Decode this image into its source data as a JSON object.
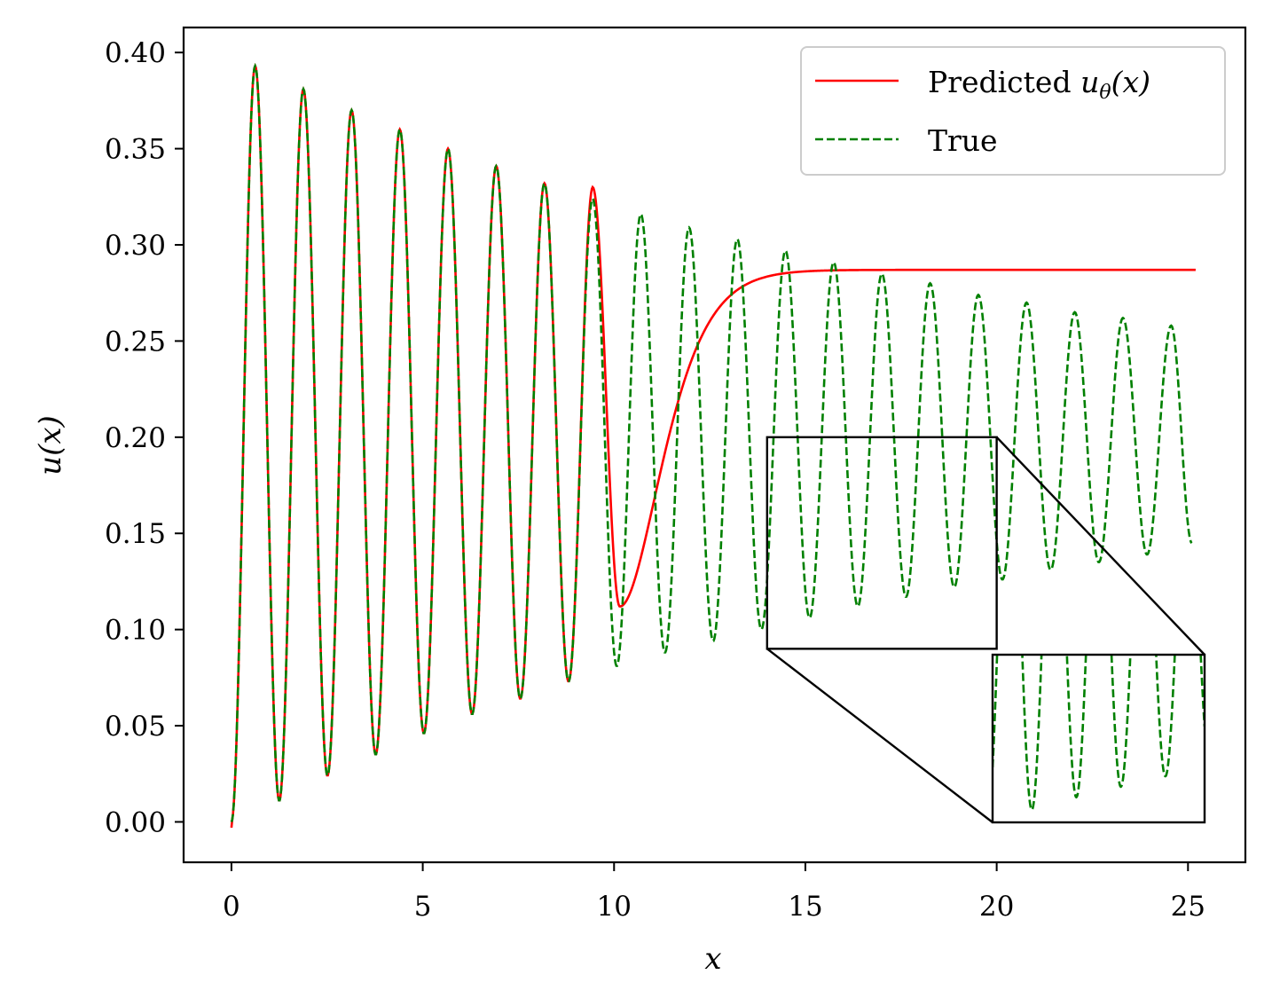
{
  "chart_data": {
    "type": "line",
    "title": "",
    "xlabel": "x",
    "ylabel": "u(x)",
    "xlim": [
      -1.25,
      26.5
    ],
    "ylim": [
      -0.021,
      0.413
    ],
    "x_ticks": [
      0,
      5,
      10,
      15,
      20,
      25
    ],
    "x_tick_labels": [
      "0",
      "5",
      "10",
      "15",
      "20",
      "25"
    ],
    "y_ticks": [
      0.0,
      0.05,
      0.1,
      0.15,
      0.2,
      0.25,
      0.3,
      0.35,
      0.4
    ],
    "y_tick_labels": [
      "0.00",
      "0.05",
      "0.10",
      "0.15",
      "0.20",
      "0.25",
      "0.30",
      "0.35",
      "0.40"
    ],
    "grid": false,
    "legend_position": "top-right",
    "series": [
      {
        "name": "Predicted uθ(x)",
        "legend_main": "Predicted ",
        "legend_var": "u",
        "legend_sub": "θ",
        "legend_tail": "(x)",
        "color": "#ff0000",
        "style": "solid",
        "x_range": [
          0,
          25.2
        ],
        "description": "matches True up to x≈10, then rises monotonically to plateau ≈0.287",
        "plateau": 0.287,
        "dip_point": [
          10.15,
          0.112
        ]
      },
      {
        "name": "True",
        "color": "#008000",
        "style": "dashed",
        "x_range": [
          0,
          25.1
        ],
        "period": 1.26,
        "peaks": [
          [
            0.62,
            0.393
          ],
          [
            1.88,
            0.381
          ],
          [
            3.14,
            0.37
          ],
          [
            4.4,
            0.36
          ],
          [
            5.66,
            0.35
          ],
          [
            6.92,
            0.341
          ],
          [
            8.18,
            0.332
          ],
          [
            9.44,
            0.324
          ],
          [
            10.7,
            0.316
          ],
          [
            11.96,
            0.309
          ],
          [
            13.22,
            0.303
          ],
          [
            14.48,
            0.297
          ],
          [
            15.74,
            0.291
          ],
          [
            17.0,
            0.285
          ],
          [
            18.26,
            0.28
          ],
          [
            19.52,
            0.274
          ],
          [
            20.78,
            0.27
          ],
          [
            22.04,
            0.265
          ],
          [
            23.3,
            0.262
          ],
          [
            24.56,
            0.258
          ]
        ],
        "troughs": [
          [
            1.25,
            0.011
          ],
          [
            2.51,
            0.024
          ],
          [
            3.77,
            0.035
          ],
          [
            5.03,
            0.046
          ],
          [
            6.29,
            0.056
          ],
          [
            7.55,
            0.064
          ],
          [
            8.81,
            0.073
          ],
          [
            10.07,
            0.081
          ],
          [
            11.33,
            0.088
          ],
          [
            12.59,
            0.094
          ],
          [
            13.85,
            0.1
          ],
          [
            15.11,
            0.106
          ],
          [
            16.37,
            0.112
          ],
          [
            17.63,
            0.117
          ],
          [
            18.89,
            0.122
          ],
          [
            20.15,
            0.126
          ],
          [
            21.41,
            0.131
          ],
          [
            22.67,
            0.135
          ],
          [
            23.93,
            0.139
          ]
        ]
      }
    ],
    "inset": {
      "source_x": [
        14.0,
        20.0
      ],
      "source_y": [
        0.09,
        0.2
      ],
      "zoom_x": [
        14.0,
        20.0
      ],
      "zoom_y": [
        0.1,
        0.18
      ]
    }
  }
}
